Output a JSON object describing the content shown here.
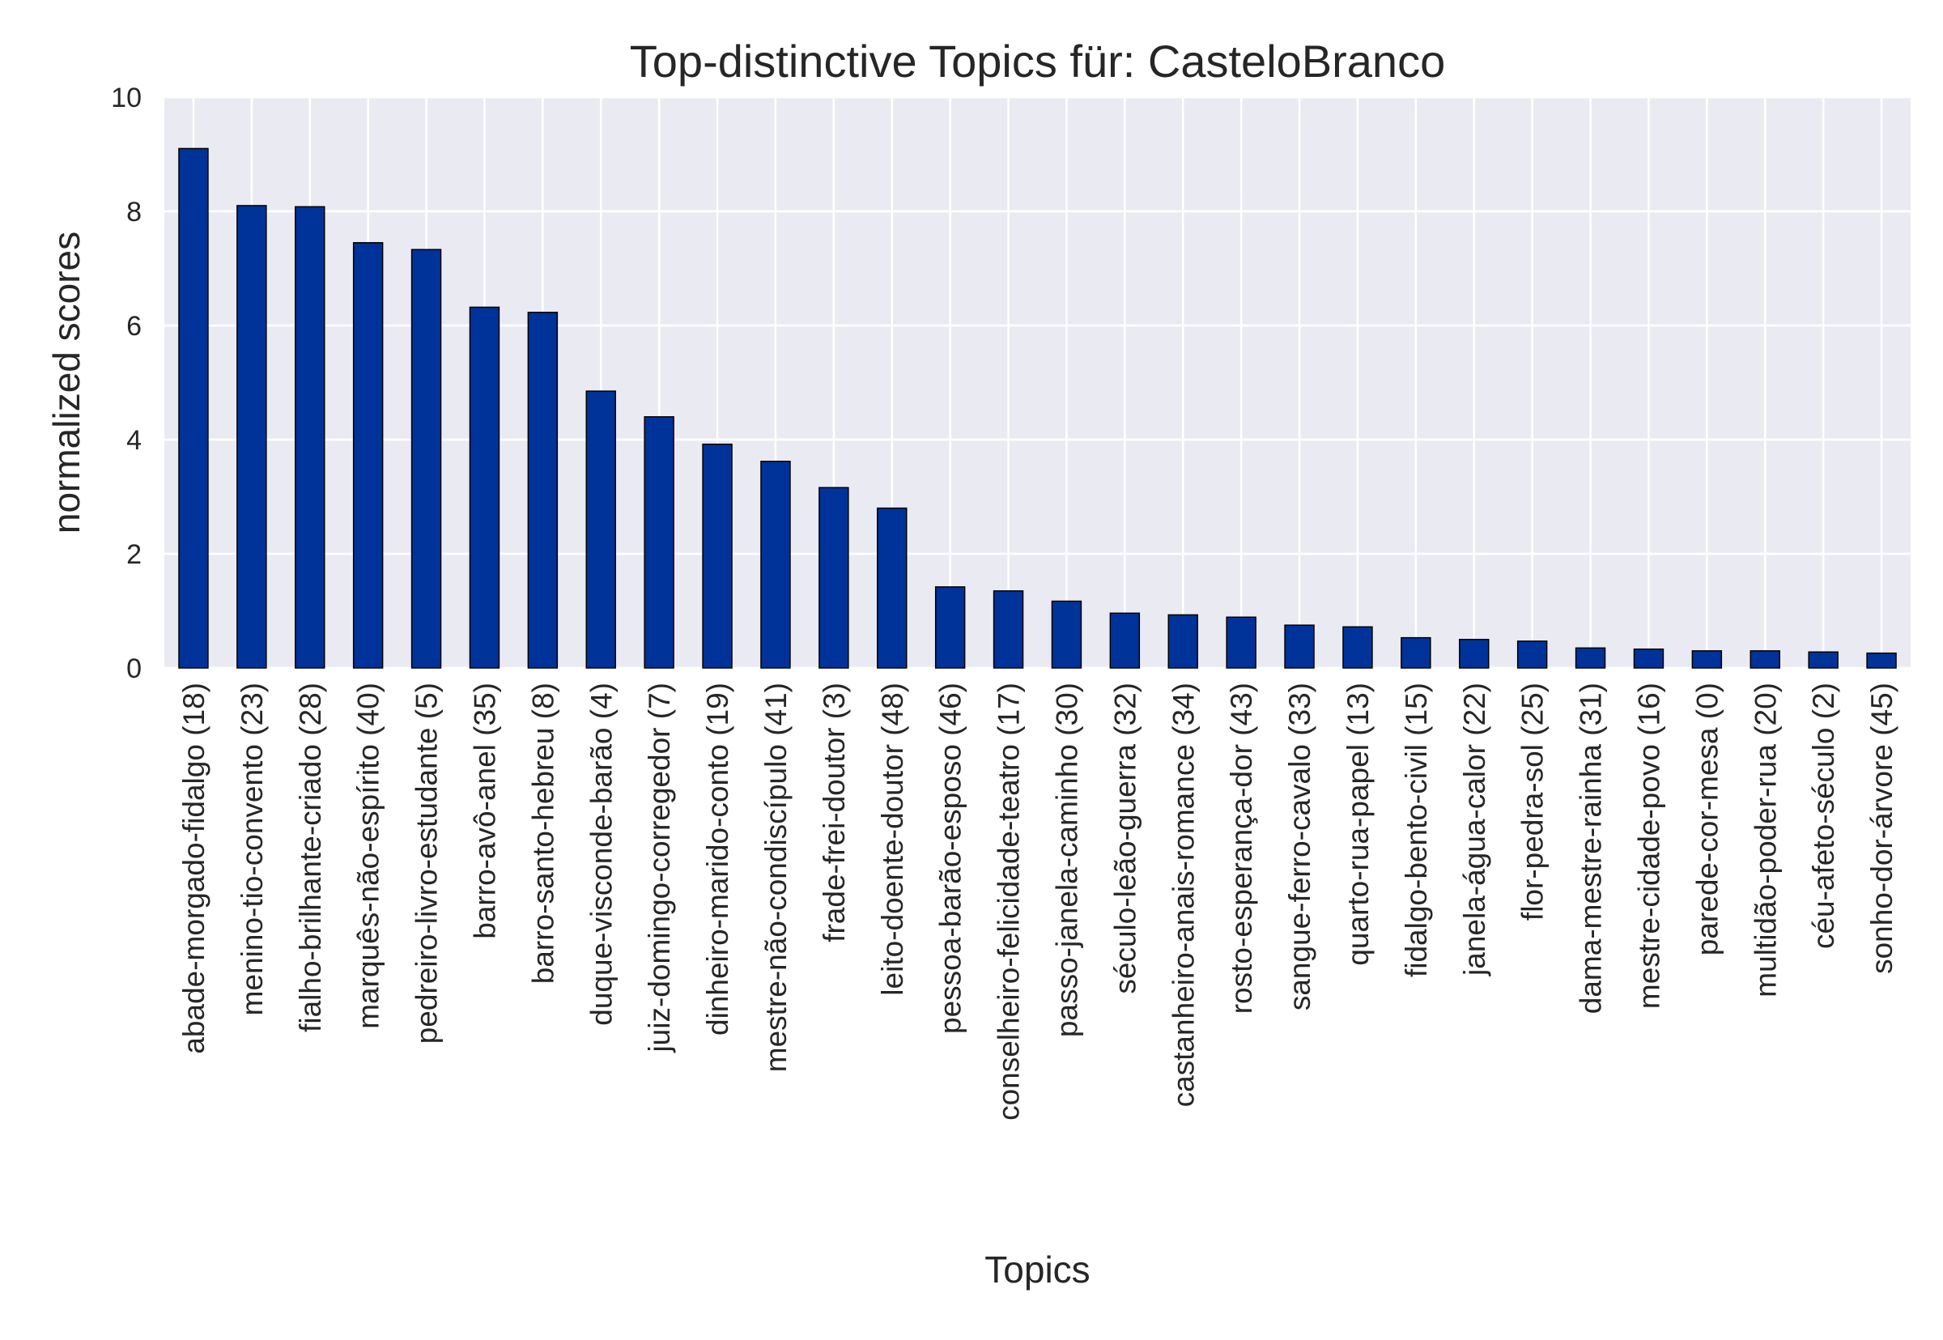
{
  "chart_data": {
    "type": "bar",
    "title": "Top-distinctive Topics für: CasteloBranco",
    "xlabel": "Topics",
    "ylabel": "normalized scores",
    "ylim": [
      0,
      10
    ],
    "yticks": [
      0,
      2,
      4,
      6,
      8,
      10
    ],
    "grid": true,
    "legend": "none",
    "colors": {
      "bar": "#003399",
      "bar_edge": "#000000",
      "plot_background": "#EAEAF2",
      "grid": "#FFFFFF"
    },
    "categories": [
      "abade-morgado-fidalgo (18)",
      "menino-tio-convento (23)",
      "fialho-brilhante-criado (28)",
      "marquês-não-espírito (40)",
      "pedreiro-livro-estudante (5)",
      "barro-avô-anel (35)",
      "barro-santo-hebreu (8)",
      "duque-visconde-barão (4)",
      "juiz-domingo-corregedor (7)",
      "dinheiro-marido-conto (19)",
      "mestre-não-condiscípulo (41)",
      "frade-frei-doutor (3)",
      "leito-doente-doutor (48)",
      "pessoa-barão-esposo (46)",
      "conselheiro-felicidade-teatro (17)",
      "passo-janela-caminho (30)",
      "século-leão-guerra (32)",
      "castanheiro-anais-romance (34)",
      "rosto-esperança-dor (43)",
      "sangue-ferro-cavalo (33)",
      "quarto-rua-papel (13)",
      "fidalgo-bento-civil (15)",
      "janela-água-calor (22)",
      "flor-pedra-sol (25)",
      "dama-mestre-rainha (31)",
      "mestre-cidade-povo (16)",
      "parede-cor-mesa (0)",
      "multidão-poder-rua (20)",
      "céu-afeto-século (2)",
      "sonho-dor-árvore (45)"
    ],
    "values": [
      9.1,
      8.1,
      8.08,
      7.45,
      7.33,
      6.32,
      6.23,
      4.85,
      4.4,
      3.92,
      3.62,
      3.16,
      2.8,
      1.42,
      1.35,
      1.17,
      0.96,
      0.93,
      0.89,
      0.75,
      0.72,
      0.53,
      0.5,
      0.47,
      0.35,
      0.33,
      0.3,
      0.3,
      0.28,
      0.26
    ]
  }
}
